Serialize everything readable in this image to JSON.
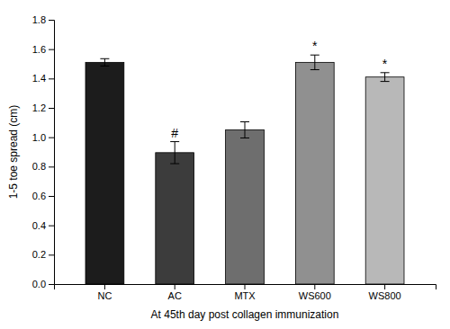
{
  "chart_data": {
    "type": "bar",
    "categories": [
      "NC",
      "AC",
      "MTX",
      "WS600",
      "WS800"
    ],
    "values": [
      1.51,
      0.895,
      1.05,
      1.51,
      1.41
    ],
    "errors": [
      0.025,
      0.075,
      0.055,
      0.05,
      0.03
    ],
    "colors": [
      "#1c1c1c",
      "#3c3c3c",
      "#6e6e6e",
      "#909090",
      "#b8b8b8"
    ],
    "annotations": [
      null,
      "#",
      null,
      "*",
      "*"
    ],
    "ylabel": "1-5 toe spread (cm)",
    "xlabel": "At 45th day post collagen immunization",
    "ylim": [
      0.0,
      1.8
    ],
    "yticks": [
      {
        "value": 0.0,
        "label": "0.0"
      },
      0.2,
      0.4,
      0.6,
      0.8,
      {
        "value": 1.0,
        "label": "1.0"
      },
      1.2,
      1.4,
      1.6,
      1.8
    ],
    "grid": false
  }
}
